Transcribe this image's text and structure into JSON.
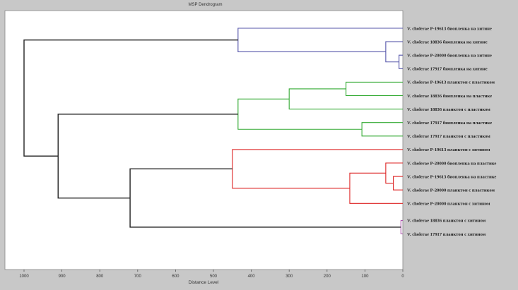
{
  "chart_data": {
    "type": "dendrogram",
    "title": "MSP Dendrogram",
    "xlabel": "Distance Level",
    "xlim": [
      1000,
      0
    ],
    "xticks": [
      "1000",
      "900",
      "800",
      "700",
      "600",
      "500",
      "400",
      "300",
      "200",
      "100",
      "0"
    ],
    "leaves": [
      "V. cholerae P-19613 биопленка на хитине",
      "V. cholerae 18836 биопленка на хитине",
      "V. cholerae P-20000 биопленка на хитине",
      "V. cholerae 17917 биопленка на хитине",
      "V. cholerae P-19613 планктон с пластиком",
      "V. cholerae 18836 биопленка на пластике",
      "V. cholerae 18836 планктон с пластиком",
      "V. cholerae 17917 биопленка на пластике",
      "V. cholerae 17917 планктон с пластиком",
      "V. cholerae P-19613 планктон с хитином",
      "V. cholerae P-20000 биопленка на пластике",
      "V. cholerae P-19613 биопленка на пластике",
      "V. cholerae P-20000 планктон с пластиком",
      "V. cholerae P-20000 планктон с хитином",
      "V. cholerae 18836 планктон с хитином",
      "V. cholerae 17917 планктон с хитином"
    ],
    "merges": [
      {
        "id": "b1",
        "left": 2,
        "right": 3,
        "height": 10,
        "color": "#5555aa"
      },
      {
        "id": "b2",
        "left": 1,
        "right": "b1",
        "height": 45,
        "color": "#5555aa"
      },
      {
        "id": "b3",
        "left": 0,
        "right": "b2",
        "height": 435,
        "color": "#5555aa"
      },
      {
        "id": "g1",
        "left": 4,
        "right": 5,
        "height": 150,
        "color": "#33aa33"
      },
      {
        "id": "g2",
        "left": "g1",
        "right": 6,
        "height": 300,
        "color": "#33aa33"
      },
      {
        "id": "g3",
        "left": 7,
        "right": 8,
        "height": 108,
        "color": "#33aa33"
      },
      {
        "id": "g4",
        "left": "g2",
        "right": "g3",
        "height": 435,
        "color": "#33aa33"
      },
      {
        "id": "r1",
        "left": 11,
        "right": 12,
        "height": 25,
        "color": "#dd2222"
      },
      {
        "id": "r2",
        "left": 10,
        "right": "r1",
        "height": 45,
        "color": "#dd2222"
      },
      {
        "id": "r3",
        "left": "r2",
        "right": 13,
        "height": 140,
        "color": "#dd2222"
      },
      {
        "id": "r4",
        "left": 9,
        "right": "r3",
        "height": 450,
        "color": "#dd2222"
      },
      {
        "id": "p1",
        "left": 14,
        "right": 15,
        "height": 5,
        "color": "#aa55aa"
      },
      {
        "id": "k1",
        "left": "r4",
        "right": "p1",
        "height": 720,
        "color": "#222222"
      },
      {
        "id": "k2",
        "left": "g4",
        "right": "k1",
        "height": 910,
        "color": "#222222"
      },
      {
        "id": "k3",
        "left": "b3",
        "right": "k2",
        "height": 1000,
        "color": "#222222"
      }
    ]
  }
}
